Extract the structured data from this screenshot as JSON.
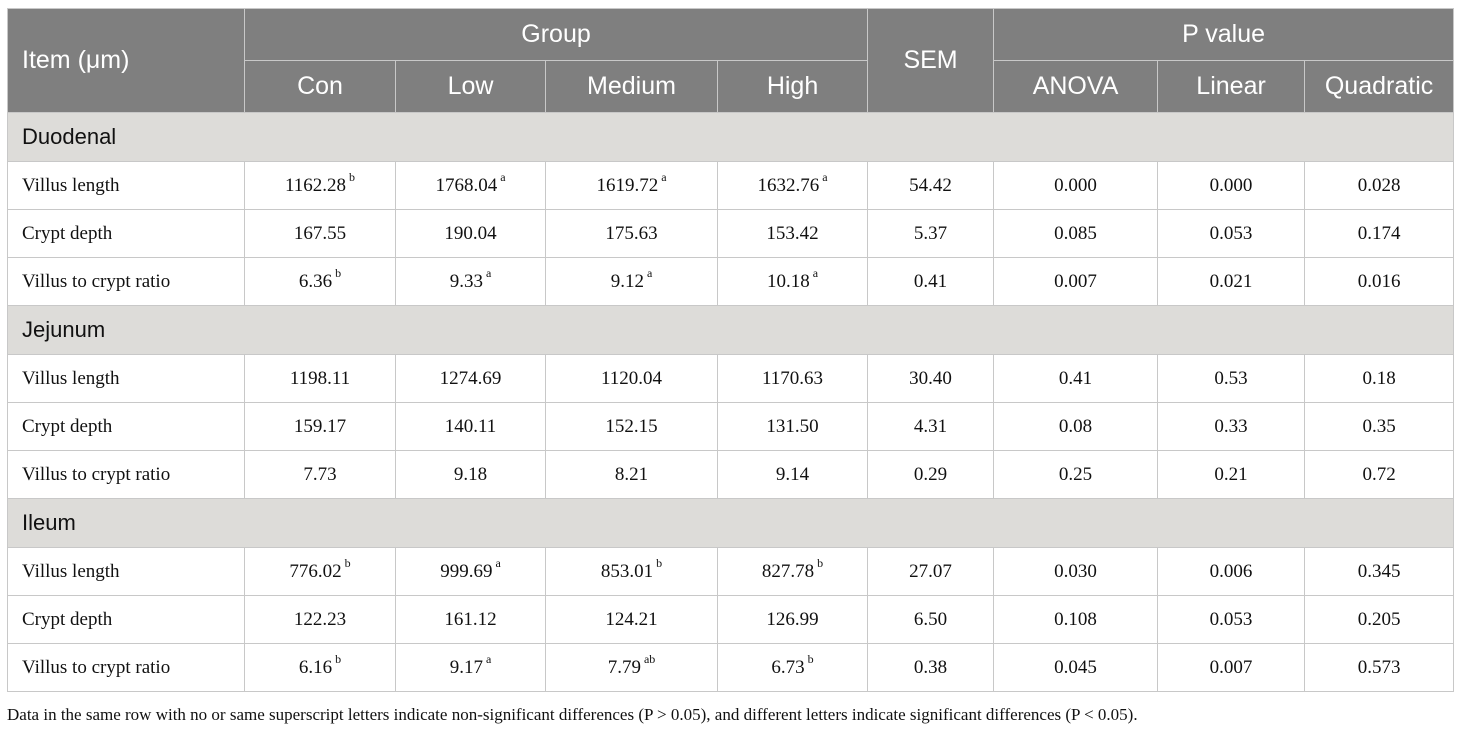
{
  "header": {
    "item": "Item (μm)",
    "group": "Group",
    "sem": "SEM",
    "pvalue": "P value",
    "groups": [
      "Con",
      "Low",
      "Medium",
      "High"
    ],
    "tests": [
      "ANOVA",
      "Linear",
      "Quadratic"
    ]
  },
  "sections": [
    {
      "name": "Duodenal",
      "rows": [
        {
          "label": "Villus length",
          "vals": [
            "1162.28",
            "1768.04",
            "1619.72",
            "1632.76"
          ],
          "sups": [
            "b",
            "a",
            "a",
            "a"
          ],
          "sem": "54.42",
          "p": [
            "0.000",
            "0.000",
            "0.028"
          ]
        },
        {
          "label": "Crypt depth",
          "vals": [
            "167.55",
            "190.04",
            "175.63",
            "153.42"
          ],
          "sups": [
            "",
            "",
            "",
            ""
          ],
          "sem": "5.37",
          "p": [
            "0.085",
            "0.053",
            "0.174"
          ]
        },
        {
          "label": "Villus to crypt ratio",
          "vals": [
            "6.36",
            "9.33",
            "9.12",
            "10.18"
          ],
          "sups": [
            "b",
            "a",
            "a",
            "a"
          ],
          "sem": "0.41",
          "p": [
            "0.007",
            "0.021",
            "0.016"
          ]
        }
      ]
    },
    {
      "name": "Jejunum",
      "rows": [
        {
          "label": "Villus length",
          "vals": [
            "1198.11",
            "1274.69",
            "1120.04",
            "1170.63"
          ],
          "sups": [
            "",
            "",
            "",
            ""
          ],
          "sem": "30.40",
          "p": [
            "0.41",
            "0.53",
            "0.18"
          ]
        },
        {
          "label": "Crypt depth",
          "vals": [
            "159.17",
            "140.11",
            "152.15",
            "131.50"
          ],
          "sups": [
            "",
            "",
            "",
            ""
          ],
          "sem": "4.31",
          "p": [
            "0.08",
            "0.33",
            "0.35"
          ]
        },
        {
          "label": "Villus to crypt ratio",
          "vals": [
            "7.73",
            "9.18",
            "8.21",
            "9.14"
          ],
          "sups": [
            "",
            "",
            "",
            ""
          ],
          "sem": "0.29",
          "p": [
            "0.25",
            "0.21",
            "0.72"
          ]
        }
      ]
    },
    {
      "name": "Ileum",
      "rows": [
        {
          "label": "Villus length",
          "vals": [
            "776.02",
            "999.69",
            "853.01",
            "827.78"
          ],
          "sups": [
            "b",
            "a",
            "b",
            "b"
          ],
          "sem": "27.07",
          "p": [
            "0.030",
            "0.006",
            "0.345"
          ]
        },
        {
          "label": "Crypt depth",
          "vals": [
            "122.23",
            "161.12",
            "124.21",
            "126.99"
          ],
          "sups": [
            "",
            "",
            "",
            ""
          ],
          "sem": "6.50",
          "p": [
            "0.108",
            "0.053",
            "0.205"
          ]
        },
        {
          "label": "Villus to crypt ratio",
          "vals": [
            "6.16",
            "9.17",
            "7.79",
            "6.73"
          ],
          "sups": [
            "b",
            "a",
            "ab",
            "b"
          ],
          "sem": "0.38",
          "p": [
            "0.045",
            "0.007",
            "0.573"
          ]
        }
      ]
    }
  ],
  "footnote": "Data in the same row with no or same superscript letters indicate non-significant differences (P > 0.05), and different letters indicate significant differences (P < 0.05)."
}
